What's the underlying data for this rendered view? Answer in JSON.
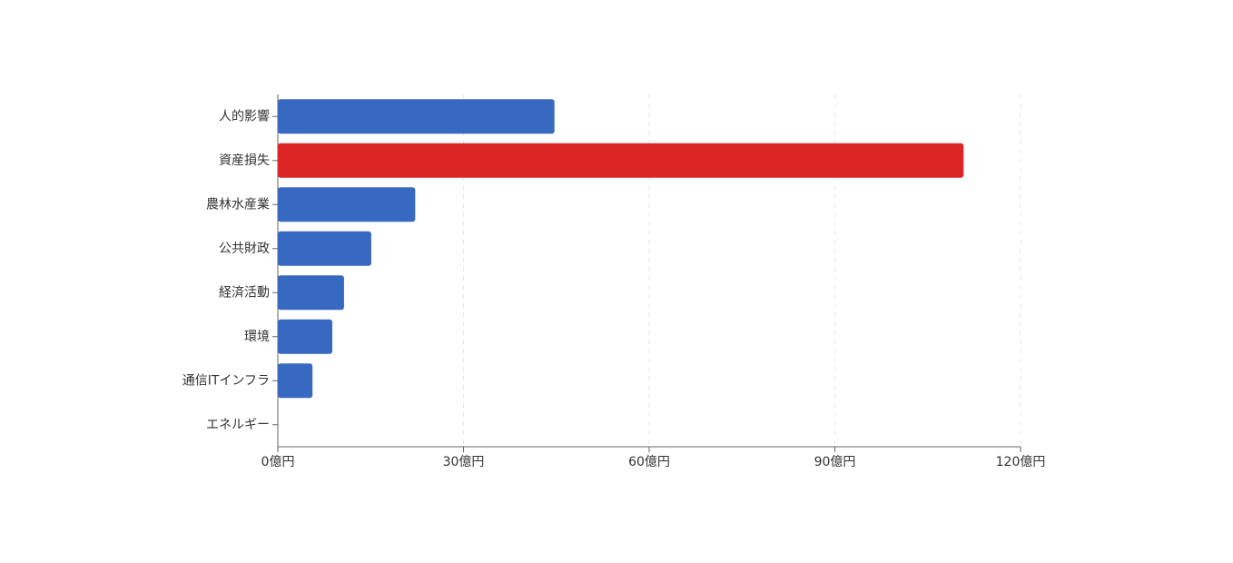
{
  "chart_data": {
    "type": "bar",
    "categories": [
      "人的影響",
      "資産損失",
      "農林水産業",
      "公共財政",
      "経済活動",
      "環境",
      "通信ITインフラ",
      "エネルギー"
    ],
    "values": [
      44.7,
      110.8,
      22.2,
      15.1,
      10.7,
      8.8,
      5.6,
      0
    ],
    "colors": [
      "#3869c1",
      "#dc2626",
      "#3869c1",
      "#3869c1",
      "#3869c1",
      "#3869c1",
      "#3869c1",
      "#3869c1"
    ],
    "xlim": [
      0,
      120
    ],
    "xticks": [
      {
        "value": 0,
        "label": "0億円"
      },
      {
        "value": 30,
        "label": "30億円"
      },
      {
        "value": 60,
        "label": "60億円"
      },
      {
        "value": 90,
        "label": "90億円"
      },
      {
        "value": 120,
        "label": "120億円"
      }
    ],
    "grid": true
  }
}
